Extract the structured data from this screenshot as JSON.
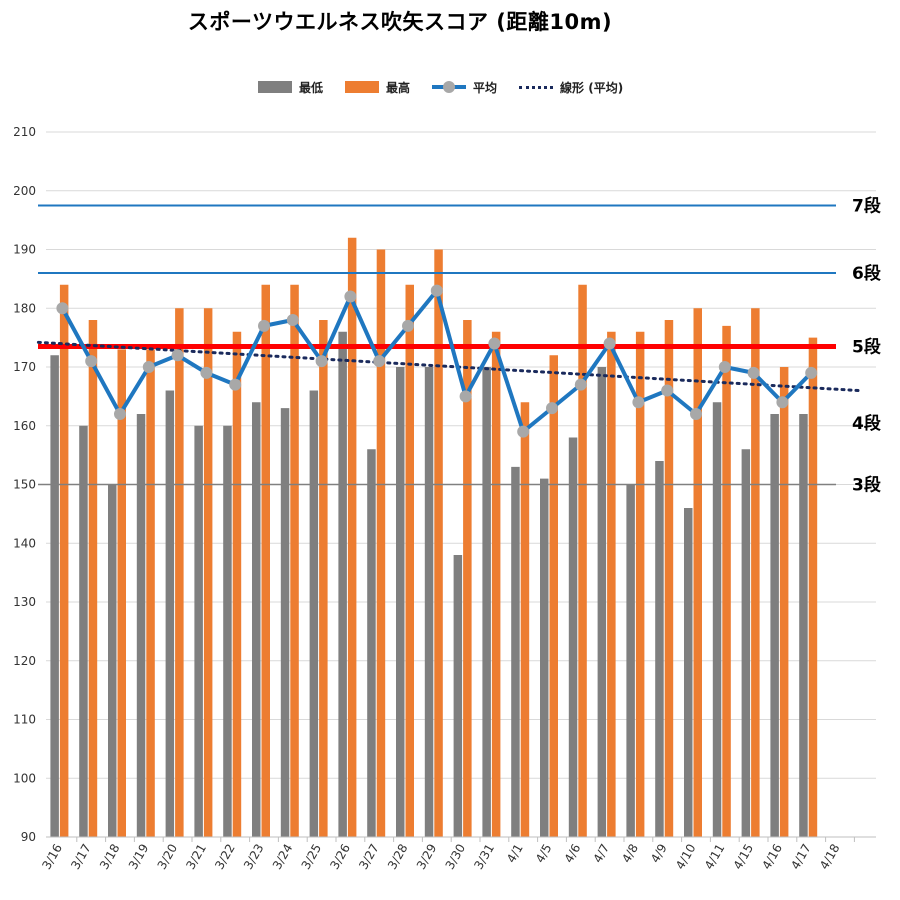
{
  "title": "スポーツウエルネス吹矢スコア (距離10m)",
  "legend": {
    "min_label": "最低",
    "max_label": "最高",
    "avg_label": "平均",
    "trend_label": "線形 (平均)"
  },
  "colors": {
    "min_bar": "#7f7f7f",
    "max_bar": "#ed7d31",
    "avg_line": "#1f77c0",
    "avg_marker": "#a8a8a8",
    "trend": "#1a2a5c",
    "grid": "#d9d9d9",
    "rank5_line": "#ff0000",
    "rank67_lines": "#1f77c0",
    "rank3_line": "#808080"
  },
  "chart_data": {
    "type": "bar",
    "title": "スポーツウエルネス吹矢スコア (距離10m)",
    "xlabel": "",
    "ylabel": "",
    "ylim": [
      90,
      210
    ],
    "yticks": [
      90,
      100,
      110,
      120,
      130,
      140,
      150,
      160,
      170,
      180,
      190,
      200,
      210
    ],
    "grid": true,
    "legend_position": "top",
    "categories": [
      "3/16",
      "3/17",
      "3/18",
      "3/19",
      "3/20",
      "3/21",
      "3/22",
      "3/23",
      "3/24",
      "3/25",
      "3/26",
      "3/27",
      "3/28",
      "3/29",
      "3/30",
      "3/31",
      "4/1",
      "4/5",
      "4/6",
      "4/7",
      "4/8",
      "4/9",
      "4/10",
      "4/11",
      "4/15",
      "4/16",
      "4/17",
      "4/18"
    ],
    "series": [
      {
        "name": "最低",
        "type": "bar",
        "values": [
          172,
          160,
          150,
          162,
          166,
          160,
          160,
          164,
          163,
          166,
          176,
          156,
          170,
          170,
          138,
          170,
          153,
          151,
          158,
          170,
          150,
          154,
          146,
          164,
          156,
          162,
          162,
          null
        ]
      },
      {
        "name": "最高",
        "type": "bar",
        "values": [
          184,
          178,
          173,
          173,
          180,
          180,
          176,
          184,
          184,
          178,
          192,
          190,
          184,
          190,
          178,
          176,
          164,
          172,
          184,
          176,
          176,
          178,
          180,
          177,
          180,
          170,
          175,
          null
        ]
      },
      {
        "name": "平均",
        "type": "line",
        "values": [
          180,
          171,
          162,
          170,
          172,
          169,
          167,
          177,
          178,
          171,
          182,
          171,
          177,
          183,
          165,
          174,
          159,
          163,
          167,
          174,
          164,
          166,
          162,
          170,
          169,
          164,
          169,
          null
        ]
      },
      {
        "name": "線形 (平均)",
        "type": "trendline",
        "style": "dotted",
        "start": 174.2,
        "end": 166.0
      }
    ],
    "reference_lines": [
      {
        "label": "7段",
        "value": 197.5,
        "color": "#1f77c0",
        "label_color": "#000000"
      },
      {
        "label": "6段",
        "value": 186,
        "color": "#1f77c0",
        "label_color": "#000000"
      },
      {
        "label": "5段",
        "value": 173.5,
        "color": "#ff0000",
        "label_color": "#1f77c0"
      },
      {
        "label": "4段",
        "value": 160.5,
        "color": null,
        "label_color": "#000000"
      },
      {
        "label": "3段",
        "value": 150,
        "color": "#808080",
        "label_color": "#000000"
      }
    ]
  }
}
